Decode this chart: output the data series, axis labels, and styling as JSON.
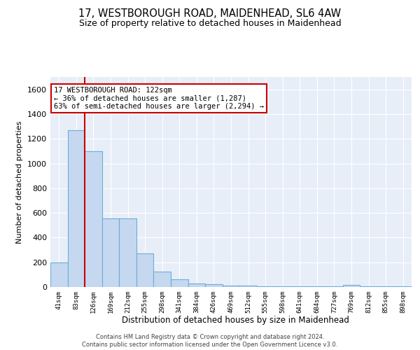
{
  "title1": "17, WESTBOROUGH ROAD, MAIDENHEAD, SL6 4AW",
  "title2": "Size of property relative to detached houses in Maidenhead",
  "xlabel": "Distribution of detached houses by size in Maidenhead",
  "ylabel": "Number of detached properties",
  "footer1": "Contains HM Land Registry data © Crown copyright and database right 2024.",
  "footer2": "Contains public sector information licensed under the Open Government Licence v3.0.",
  "annotation_line1": "17 WESTBOROUGH ROAD: 122sqm",
  "annotation_line2": "← 36% of detached houses are smaller (1,287)",
  "annotation_line3": "63% of semi-detached houses are larger (2,294) →",
  "bar_color": "#c5d8f0",
  "bar_edge_color": "#6baed6",
  "bg_color": "#e8eef8",
  "grid_color": "#d0d8e8",
  "red_line_color": "#cc0000",
  "categories": [
    "41sqm",
    "83sqm",
    "126sqm",
    "169sqm",
    "212sqm",
    "255sqm",
    "298sqm",
    "341sqm",
    "384sqm",
    "426sqm",
    "469sqm",
    "512sqm",
    "555sqm",
    "598sqm",
    "641sqm",
    "684sqm",
    "727sqm",
    "769sqm",
    "812sqm",
    "855sqm",
    "898sqm"
  ],
  "values": [
    200,
    1270,
    1100,
    555,
    555,
    270,
    125,
    60,
    30,
    20,
    10,
    10,
    5,
    5,
    5,
    5,
    5,
    15,
    5,
    5,
    5
  ],
  "red_line_x": 1.5,
  "ylim": [
    0,
    1700
  ],
  "yticks": [
    0,
    200,
    400,
    600,
    800,
    1000,
    1200,
    1400,
    1600
  ]
}
